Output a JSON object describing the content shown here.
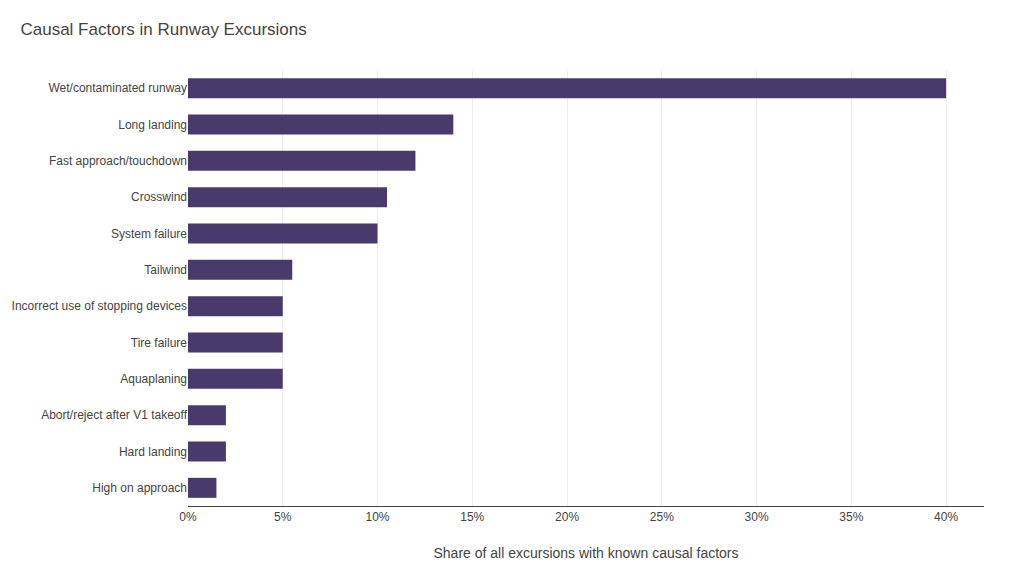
{
  "chart_data": {
    "type": "bar",
    "orientation": "horizontal",
    "title": "Causal Factors in Runway Excursions",
    "categories": [
      "Wet/contaminated runway",
      "Long landing",
      "Fast approach/touchdown",
      "Crosswind",
      "System failure",
      "Tailwind",
      "Incorrect use of stopping devices",
      "Tire failure",
      "Aquaplaning",
      "Abort/reject after V1 takeoff",
      "Hard landing",
      "High on approach"
    ],
    "values": [
      40,
      14,
      12,
      10.5,
      10,
      5.5,
      5,
      5,
      5,
      2,
      2,
      1.5
    ],
    "color": "#4a3a6b",
    "xlabel": "Share of all excursions with known causal factors",
    "xlim": [
      0,
      42
    ],
    "xticks": [
      {
        "value": 0,
        "label": "0%"
      },
      {
        "value": 5,
        "label": "5%"
      },
      {
        "value": 10,
        "label": "10%"
      },
      {
        "value": 15,
        "label": "15%"
      },
      {
        "value": 20,
        "label": "20%"
      },
      {
        "value": 25,
        "label": "25%"
      },
      {
        "value": 30,
        "label": "30%"
      },
      {
        "value": 35,
        "label": "35%"
      },
      {
        "value": 40,
        "label": "40%"
      }
    ],
    "grid": true
  }
}
